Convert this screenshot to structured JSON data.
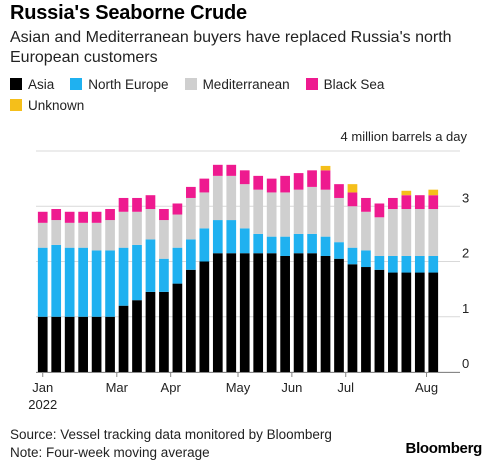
{
  "header": {
    "title": "Russia's Seaborne Crude",
    "subtitle": "Asian and Mediterranean buyers have replaced Russia's north European customers"
  },
  "legend": [
    {
      "name": "Asia",
      "color": "#000000"
    },
    {
      "name": "North Europe",
      "color": "#1fb1f0"
    },
    {
      "name": "Mediterranean",
      "color": "#cfcfcf"
    },
    {
      "name": "Black Sea",
      "color": "#ee1a8f"
    },
    {
      "name": "Unknown",
      "color": "#f5bf1a"
    }
  ],
  "footer": {
    "source": "Source: Vessel tracking data monitored by Bloomberg",
    "note": "Note: Four-week moving average",
    "brand": "Bloomberg"
  },
  "chart_data": {
    "type": "bar",
    "stacked": true,
    "unit_label": "4 million barrels a day",
    "ylim": [
      0,
      4
    ],
    "yticks": [
      0,
      1,
      2,
      3
    ],
    "x_tick_labels": [
      "Jan",
      "Mar",
      "Apr",
      "May",
      "Jun",
      "Jul",
      "Aug"
    ],
    "x_tick_positions": [
      0,
      5.5,
      9.5,
      14.5,
      18.5,
      22.5,
      28.5
    ],
    "x_year_label": "2022",
    "grid": true,
    "series": [
      {
        "name": "Asia",
        "color": "#000000",
        "values": [
          1.0,
          1.0,
          1.0,
          1.0,
          1.0,
          1.0,
          1.2,
          1.3,
          1.45,
          1.45,
          1.6,
          1.85,
          2.0,
          2.15,
          2.15,
          2.15,
          2.15,
          2.15,
          2.1,
          2.15,
          2.15,
          2.1,
          2.05,
          1.95,
          1.9,
          1.85,
          1.8,
          1.8,
          1.8,
          1.8
        ]
      },
      {
        "name": "North Europe",
        "color": "#1fb1f0",
        "values": [
          1.25,
          1.3,
          1.25,
          1.25,
          1.2,
          1.2,
          1.05,
          1.0,
          0.95,
          0.6,
          0.65,
          0.55,
          0.6,
          0.6,
          0.6,
          0.45,
          0.35,
          0.3,
          0.35,
          0.35,
          0.35,
          0.35,
          0.3,
          0.3,
          0.3,
          0.25,
          0.3,
          0.3,
          0.3,
          0.3
        ]
      },
      {
        "name": "Mediterranean",
        "color": "#cfcfcf",
        "values": [
          0.45,
          0.45,
          0.45,
          0.45,
          0.5,
          0.55,
          0.65,
          0.6,
          0.55,
          0.7,
          0.6,
          0.75,
          0.65,
          0.8,
          0.8,
          0.8,
          0.8,
          0.8,
          0.8,
          0.8,
          0.85,
          0.85,
          0.8,
          0.75,
          0.7,
          0.7,
          0.85,
          0.85,
          0.85,
          0.85
        ]
      },
      {
        "name": "Black Sea",
        "color": "#ee1a8f",
        "values": [
          0.2,
          0.2,
          0.2,
          0.2,
          0.2,
          0.2,
          0.25,
          0.25,
          0.25,
          0.2,
          0.2,
          0.2,
          0.25,
          0.2,
          0.2,
          0.25,
          0.25,
          0.25,
          0.3,
          0.3,
          0.3,
          0.35,
          0.25,
          0.25,
          0.25,
          0.25,
          0.2,
          0.25,
          0.25,
          0.25
        ]
      },
      {
        "name": "Unknown",
        "color": "#f5bf1a",
        "values": [
          0,
          0,
          0,
          0,
          0,
          0,
          0,
          0,
          0,
          0,
          0,
          0,
          0,
          0,
          0,
          0,
          0,
          0,
          0,
          0,
          0,
          0.08,
          0,
          0.15,
          0,
          0,
          0,
          0.08,
          0,
          0.1
        ]
      }
    ]
  }
}
